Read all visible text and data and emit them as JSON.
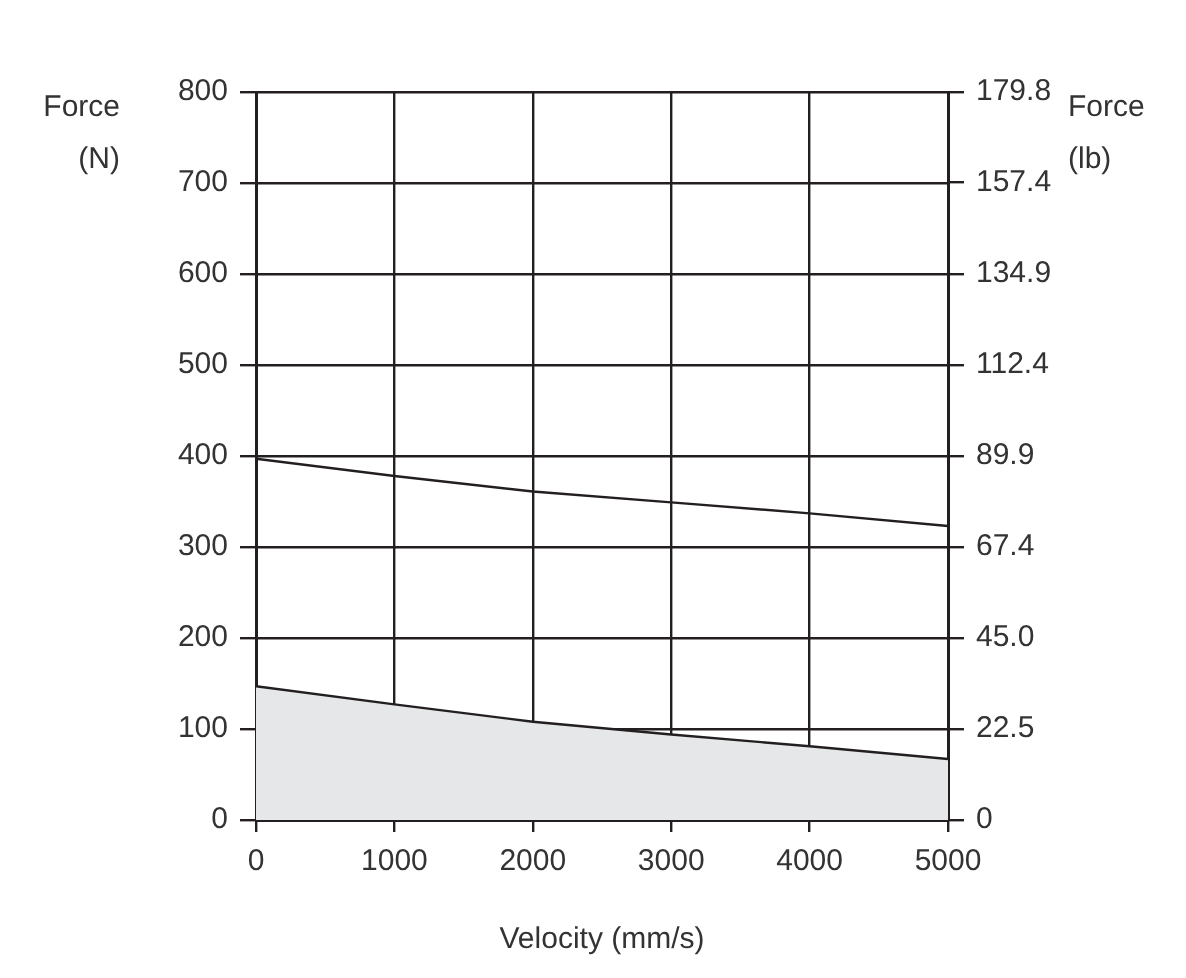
{
  "chart_data": {
    "type": "line",
    "xlabel": "Velocity (mm/s)",
    "ylabel": "Force (N)",
    "y2label": "Force (lb)",
    "x": [
      0,
      1000,
      2000,
      3000,
      4000,
      5000
    ],
    "series": [
      {
        "type": "line",
        "color": "#231f20",
        "values": [
          397,
          378,
          361,
          349,
          337,
          323
        ]
      },
      {
        "type": "area",
        "color": "#e6e7e8",
        "values": [
          147,
          127,
          108,
          94,
          81,
          67
        ]
      }
    ],
    "xlim": [
      0,
      5000
    ],
    "xticks": [
      0,
      1000,
      2000,
      3000,
      4000,
      5000
    ],
    "ylim": [
      0,
      800
    ],
    "yticks": [
      0,
      100,
      200,
      300,
      400,
      500,
      600,
      700,
      800
    ],
    "y2lim": [
      0,
      179.8
    ],
    "y2ticks": [
      0,
      22.5,
      {
        "value": 45,
        "label": "45.0"
      },
      67.4,
      89.9,
      112.4,
      134.9,
      157.4,
      179.8
    ],
    "grid": true,
    "marker": "none",
    "line_style": "solid",
    "legend": false
  }
}
